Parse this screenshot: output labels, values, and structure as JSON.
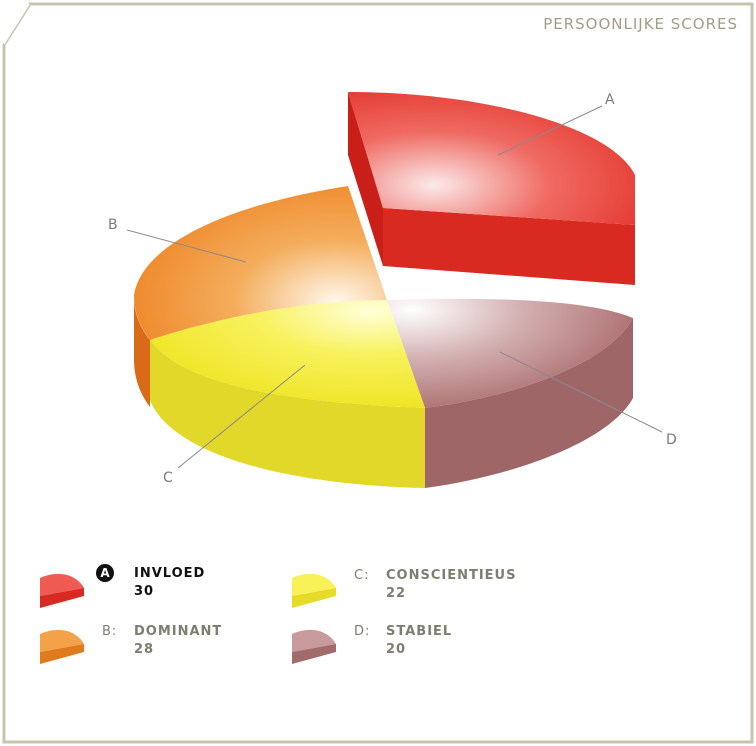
{
  "title": "PERSOONLIJKE SCORES",
  "chart_data": {
    "type": "pie",
    "title": "PERSOONLIJKE SCORES",
    "slices": [
      {
        "id": "A",
        "letter": "A",
        "name": "INVLOED",
        "value": 30,
        "color": "#e03a2e",
        "highlighted": true
      },
      {
        "id": "B",
        "letter": "B",
        "name": "DOMINANT",
        "value": 28,
        "color": "#ee8b2c",
        "highlighted": false
      },
      {
        "id": "C",
        "letter": "C",
        "name": "CONSCIENTIEUS",
        "value": 22,
        "color": "#f3ea3a",
        "highlighted": false
      },
      {
        "id": "D",
        "letter": "D",
        "name": "STABIEL",
        "value": 20,
        "color": "#b07576",
        "highlighted": false
      }
    ]
  },
  "legend": {
    "A": {
      "letter": "A",
      "name": "INVLOED",
      "value": "30",
      "colon": ""
    },
    "B": {
      "letter": "B",
      "name": "DOMINANT",
      "value": "28",
      "colon": "B:"
    },
    "C": {
      "letter": "C",
      "name": "CONSCIENTIEUS",
      "value": "22",
      "colon": "C:"
    },
    "D": {
      "letter": "D",
      "name": "STABIEL",
      "value": "20",
      "colon": "D:"
    }
  }
}
